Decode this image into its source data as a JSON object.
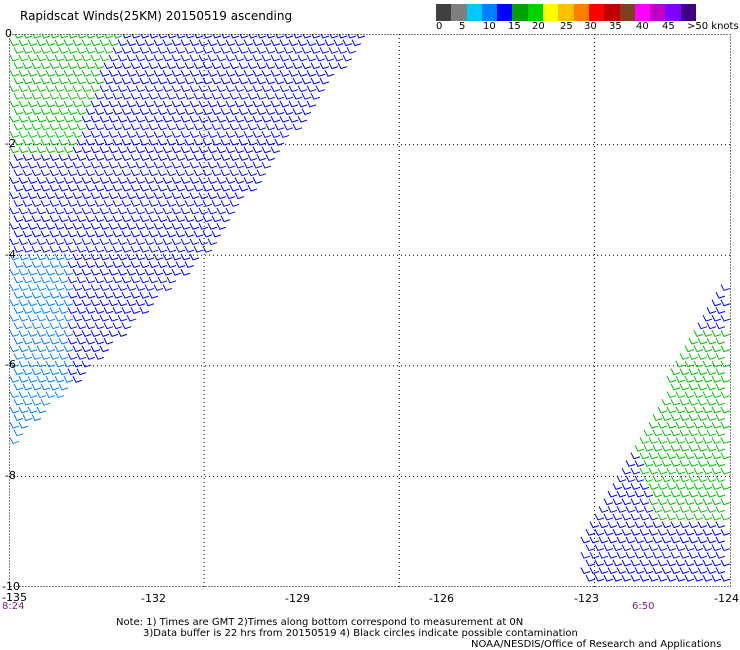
{
  "header": {
    "title": "Rapidscat Winds(25KM) 20150519 ascending"
  },
  "colorbar": {
    "colors": [
      "#404040",
      "#7f7f7f",
      "#00c8ff",
      "#0080ff",
      "#0000ff",
      "#00a000",
      "#00d000",
      "#ffff00",
      "#ffc000",
      "#ff8000",
      "#ff0000",
      "#c00000",
      "#804020",
      "#ff00ff",
      "#c000c0",
      "#8000ff",
      "#400080"
    ],
    "labels": [
      "0",
      "5",
      "10",
      "15",
      "20",
      "25",
      "30",
      "35",
      "40",
      "45",
      ">50 knots"
    ]
  },
  "map": {
    "lat_range": [
      -10,
      0
    ],
    "lon_range": [
      -135,
      -123.9
    ],
    "y_ticks": [
      "0",
      "-2",
      "-4",
      "-6",
      "-8",
      "-10"
    ],
    "x_ticks": [
      "-135",
      "-132",
      "-129",
      "-126",
      "-123",
      "-124"
    ],
    "times": [
      "8:24",
      "6:50"
    ],
    "grid": true,
    "swaths": [
      {
        "name": "west",
        "polygon": [
          [
            -135,
            0
          ],
          [
            -129.5,
            0
          ],
          [
            -132,
            -4
          ],
          [
            -135,
            -7.5
          ]
        ]
      },
      {
        "name": "east",
        "polygon": [
          [
            -124,
            -4.5
          ],
          [
            -124,
            -10
          ],
          [
            -126.2,
            -10
          ],
          [
            -126.2,
            -9.2
          ]
        ]
      }
    ],
    "wind_colors": {
      "blue": "#0000ff",
      "green": "#00c000",
      "light": "#0080ff"
    }
  },
  "notes": {
    "line1": "Note: 1) Times are GMT 2)Times along bottom correspond to measurement at 0N",
    "line2": "3)Data buffer is 22 hrs from 20150519 4) Black circles indicate possible contamination",
    "line3": "NOAA/NESDIS/Office of Research and Applications"
  }
}
